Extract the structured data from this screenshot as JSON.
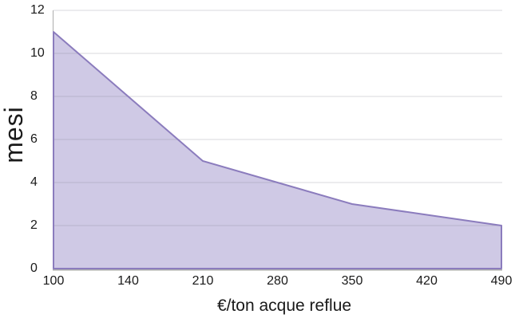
{
  "chart_data": {
    "type": "area",
    "title": "",
    "xlabel": "€/ton acque reflue",
    "ylabel": "mesi",
    "categories": [
      100,
      140,
      210,
      280,
      350,
      420,
      490
    ],
    "values": [
      11,
      8,
      5,
      4,
      3,
      2.5,
      2
    ],
    "series_name": "",
    "ylim": [
      0,
      12
    ],
    "y_ticks": [
      0,
      2,
      4,
      6,
      8,
      10,
      12
    ],
    "x_axis_type": "category",
    "grid": "horizontal",
    "legend_position": "none",
    "colors": {
      "area_fill": "#cfc9e5",
      "area_border": "#8b7cbd",
      "gridline": "rgba(130,130,140,0.30)",
      "axis_line": "#adadad",
      "text": "#1a1a1a",
      "background": "#ffffff"
    }
  }
}
